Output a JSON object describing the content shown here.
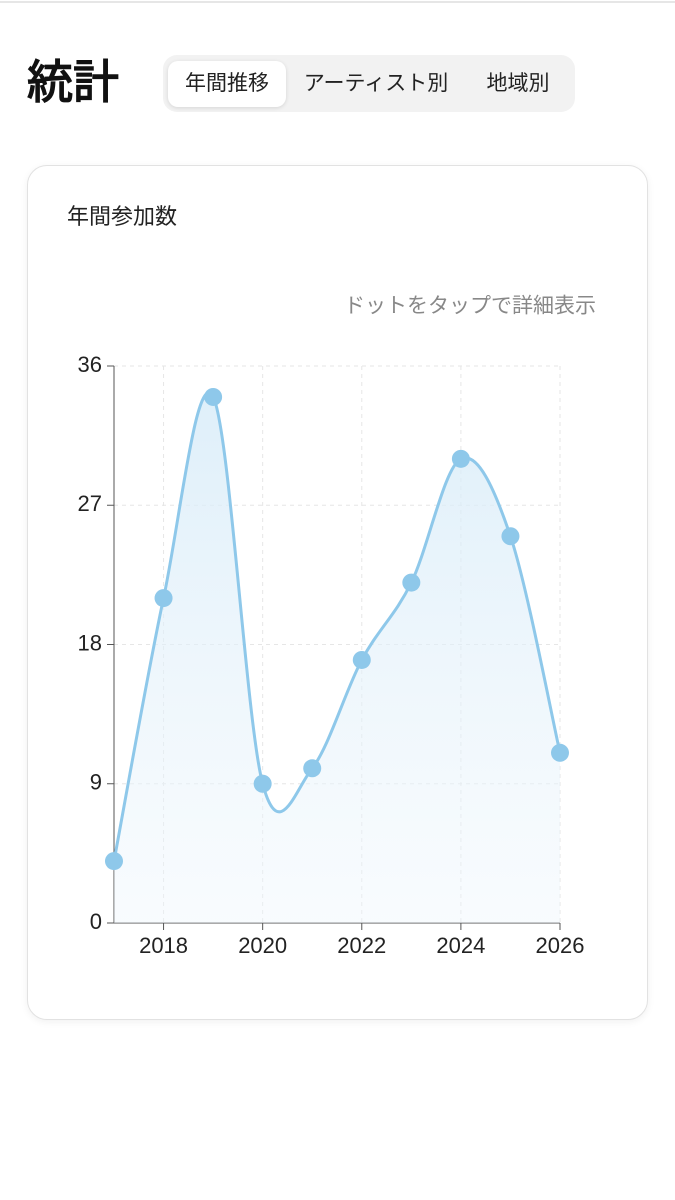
{
  "header": {
    "title": "統計",
    "tabs": [
      "年間推移",
      "アーティスト別",
      "地域別"
    ],
    "active_tab": 0
  },
  "chart_data": {
    "type": "line",
    "title": "年間参加数",
    "subtitle": "ドットをタップで詳細表示",
    "x": [
      2017,
      2018,
      2019,
      2020,
      2021,
      2022,
      2023,
      2024,
      2025,
      2026
    ],
    "values": [
      4,
      21,
      34,
      9,
      10,
      17,
      22,
      30,
      25,
      11
    ],
    "color": "#8ec8ea",
    "xlim": [
      2017,
      2026
    ],
    "xticks": [
      2018,
      2020,
      2022,
      2024,
      2026
    ],
    "ylim": [
      0,
      36
    ],
    "yticks": [
      0,
      9,
      18,
      27,
      36
    ],
    "grid": true,
    "smooth": true
  }
}
